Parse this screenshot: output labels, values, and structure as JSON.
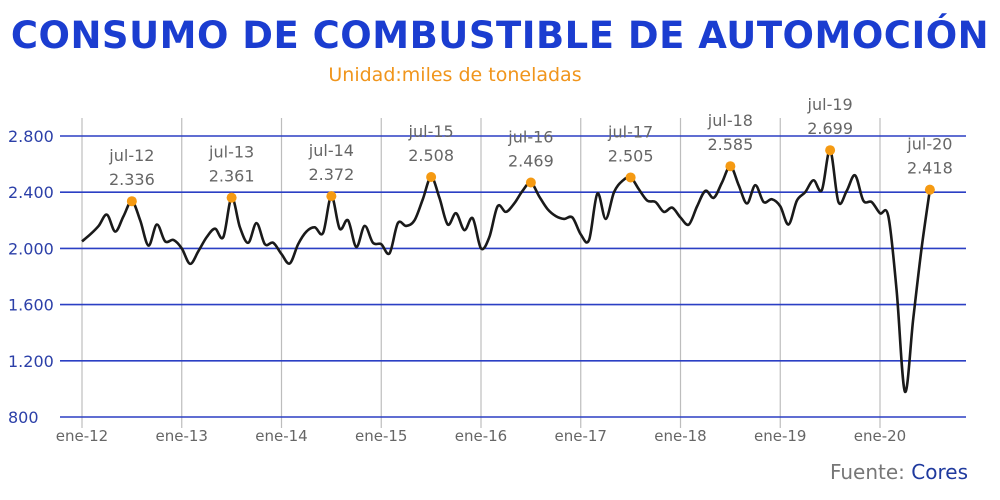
{
  "title": "CONSUMO DE COMBUSTIBLE DE AUTOMOCIÓN",
  "subtitle": "Unidad:miles de toneladas",
  "source_label": "Fuente:",
  "source_name": "Cores",
  "colors": {
    "title": "#1b3dd0",
    "subtitle": "#f0951c",
    "gridline": "#2b3fc4",
    "line": "#1a1a1a",
    "marker": "#f59a12",
    "source": "#1f3a9e"
  },
  "chart_data": {
    "type": "line",
    "title": "CONSUMO DE COMBUSTIBLE DE AUTOMOCIÓN",
    "subtitle": "Unidad:miles de toneladas",
    "xlabel": "",
    "ylabel": "",
    "ylim": [
      800,
      2800
    ],
    "yticks": [
      "800",
      "1.200",
      "1.600",
      "2.000",
      "2.400",
      "2.800"
    ],
    "ytick_values": [
      800,
      1200,
      1600,
      2000,
      2400,
      2800
    ],
    "xticks": [
      "ene-12",
      "ene-13",
      "ene-14",
      "ene-15",
      "ene-16",
      "ene-17",
      "ene-18",
      "ene-19",
      "ene-20"
    ],
    "grid": "horizontal blue lines, vertical grey lines at each January",
    "legend": "none",
    "x_start": "ene-12",
    "x_end": "jul-20",
    "frequency": "monthly",
    "values": [
      2050,
      2100,
      2160,
      2240,
      2120,
      2230,
      2336,
      2200,
      2020,
      2170,
      2050,
      2060,
      2000,
      1890,
      1980,
      2080,
      2140,
      2080,
      2361,
      2150,
      2040,
      2180,
      2030,
      2040,
      1960,
      1893,
      2030,
      2120,
      2150,
      2110,
      2372,
      2140,
      2200,
      2010,
      2160,
      2040,
      2030,
      1965,
      2180,
      2160,
      2200,
      2350,
      2508,
      2360,
      2170,
      2250,
      2130,
      2215,
      2000,
      2080,
      2300,
      2260,
      2320,
      2410,
      2469,
      2370,
      2280,
      2230,
      2210,
      2220,
      2100,
      2060,
      2390,
      2210,
      2400,
      2480,
      2505,
      2420,
      2340,
      2330,
      2260,
      2290,
      2220,
      2170,
      2300,
      2410,
      2360,
      2470,
      2585,
      2450,
      2320,
      2450,
      2330,
      2350,
      2300,
      2170,
      2340,
      2400,
      2485,
      2415,
      2699,
      2330,
      2410,
      2520,
      2340,
      2330,
      2250,
      2230,
      1700,
      980,
      1500,
      2000,
      2418
    ],
    "annotations": [
      {
        "label": "jul-12",
        "value_text": "2.336",
        "value": 2336
      },
      {
        "label": "jul-13",
        "value_text": "2.361",
        "value": 2361
      },
      {
        "label": "jul-14",
        "value_text": "2.372",
        "value": 2372
      },
      {
        "label": "jul-15",
        "value_text": "2.508",
        "value": 2508
      },
      {
        "label": "jul-16",
        "value_text": "2.469",
        "value": 2469
      },
      {
        "label": "jul-17",
        "value_text": "2.505",
        "value": 2505
      },
      {
        "label": "jul-18",
        "value_text": "2.585",
        "value": 2585
      },
      {
        "label": "jul-19",
        "value_text": "2.699",
        "value": 2699
      },
      {
        "label": "jul-20",
        "value_text": "2.418",
        "value": 2418
      }
    ]
  }
}
